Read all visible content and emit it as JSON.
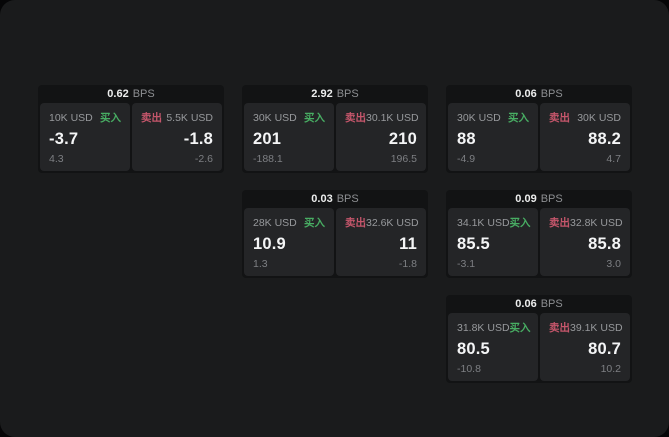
{
  "labels": {
    "bps_unit": "BPS",
    "buy": "买入",
    "sell": "卖出"
  },
  "colors": {
    "panel": "#1a1b1c",
    "card": "#121314",
    "subcard": "#242527",
    "buy_green": "#48ad63",
    "sell_red": "#c5566b"
  },
  "cards": [
    {
      "bps": "0.62",
      "buy": {
        "amount": "10K USD",
        "price": "-3.7",
        "delta": "4.3"
      },
      "sell": {
        "amount": "5.5K USD",
        "price": "-1.8",
        "delta": "-2.6"
      }
    },
    {
      "bps": "2.92",
      "buy": {
        "amount": "30K USD",
        "price": "201",
        "delta": "-188.1"
      },
      "sell": {
        "amount": "30.1K USD",
        "price": "210",
        "delta": "196.5"
      }
    },
    {
      "bps": "0.06",
      "buy": {
        "amount": "30K USD",
        "price": "88",
        "delta": "-4.9"
      },
      "sell": {
        "amount": "30K USD",
        "price": "88.2",
        "delta": "4.7"
      }
    },
    {
      "bps": "0.03",
      "buy": {
        "amount": "28K USD",
        "price": "10.9",
        "delta": "1.3"
      },
      "sell": {
        "amount": "32.6K USD",
        "price": "11",
        "delta": "-1.8"
      }
    },
    {
      "bps": "0.09",
      "buy": {
        "amount": "34.1K USD",
        "price": "85.5",
        "delta": "-3.1"
      },
      "sell": {
        "amount": "32.8K USD",
        "price": "85.8",
        "delta": "3.0"
      }
    },
    {
      "bps": "0.06",
      "buy": {
        "amount": "31.8K USD",
        "price": "80.5",
        "delta": "-10.8"
      },
      "sell": {
        "amount": "39.1K USD",
        "price": "80.7",
        "delta": "10.2"
      }
    }
  ]
}
